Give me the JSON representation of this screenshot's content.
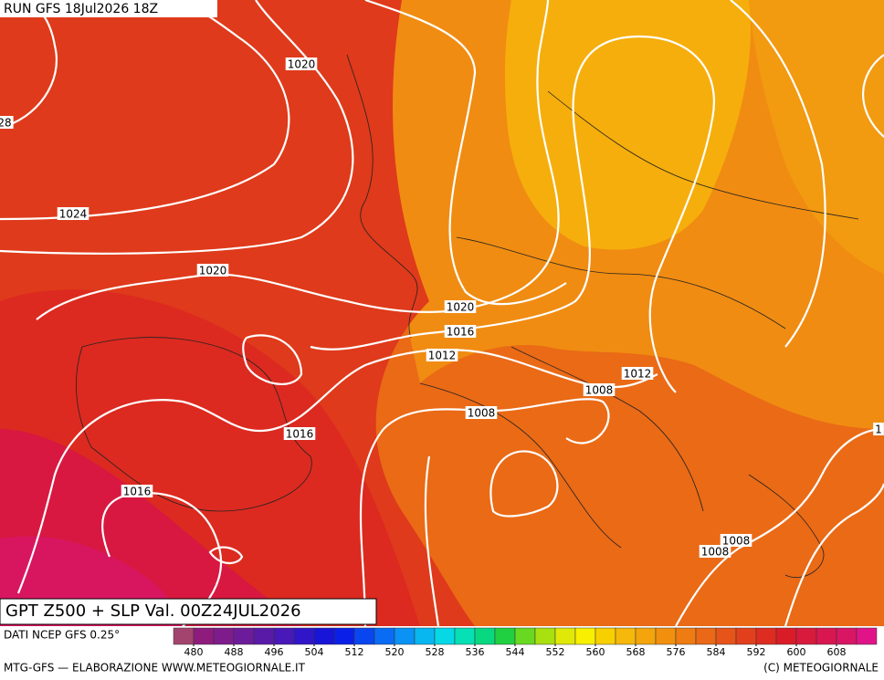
{
  "header": {
    "run": "RUN GFS 18Jul2026 18Z"
  },
  "isobar_labels": [
    "1020",
    "28",
    "1024",
    "1020",
    "1020",
    "1016",
    "1012",
    "1012",
    "1008",
    "1008",
    "1016",
    "1016",
    "1008",
    "1008",
    "1"
  ],
  "title": "GPT Z500 + SLP Val. 00Z24JUL2026",
  "source": "DATI NCEP GFS 0.25°",
  "colorbar": {
    "ticks": [
      480,
      488,
      496,
      504,
      512,
      520,
      528,
      536,
      544,
      552,
      560,
      568,
      576,
      584,
      592,
      600,
      608
    ],
    "colors": [
      "#a3446e",
      "#8e1c7c",
      "#7e1c8c",
      "#6c1c9a",
      "#5a1aa8",
      "#4818b8",
      "#3016c8",
      "#1814d8",
      "#0a20e8",
      "#0a46f0",
      "#0a6cf4",
      "#0a92f4",
      "#08b6f0",
      "#06d8e6",
      "#06e0b4",
      "#08d880",
      "#20d040",
      "#68d820",
      "#a8e010",
      "#e0e808",
      "#f8f000",
      "#f8d000",
      "#f6b80a",
      "#f4a40c",
      "#f2900e",
      "#ee7c12",
      "#ea6816",
      "#e6541a",
      "#e2401c",
      "#de2c20",
      "#da1c28",
      "#d81a3c",
      "#d81650",
      "#d81664",
      "#e01488"
    ]
  },
  "footer": {
    "left": "MTG-GFS — ELABORAZIONE WWW.METEOGIORNALE.IT",
    "right": "(C) METEOGIORNALE"
  }
}
